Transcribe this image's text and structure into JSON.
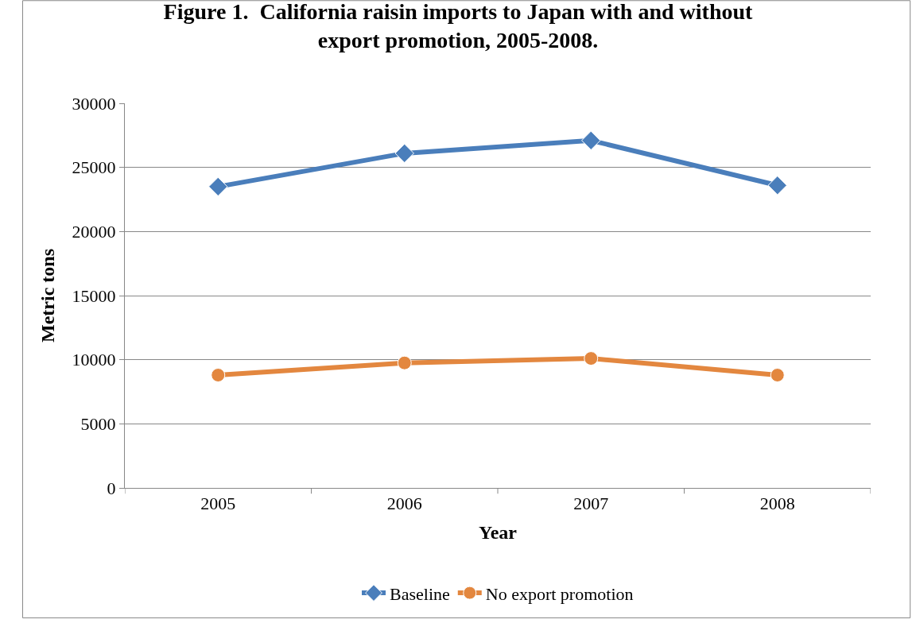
{
  "chart_data": {
    "type": "line",
    "title": "Figure 1.  California raisin imports to Japan with and without\nexport promotion, 2005-2008.",
    "xlabel": "Year",
    "ylabel": "Metric tons",
    "categories": [
      "2005",
      "2006",
      "2007",
      "2008"
    ],
    "series": [
      {
        "name": "Baseline",
        "color": "#4a7ebb",
        "values": [
          23500,
          26100,
          27100,
          23600
        ],
        "marker": "diamond"
      },
      {
        "name": "No export promotion",
        "color": "#e3873f",
        "values": [
          8800,
          9750,
          10100,
          8800
        ],
        "marker": "circle"
      }
    ],
    "ylim": [
      0,
      30000
    ],
    "yticks": [
      0,
      5000,
      10000,
      15000,
      20000,
      25000,
      30000
    ],
    "grid": "y",
    "legend": "bottom",
    "line_style": "solid"
  }
}
